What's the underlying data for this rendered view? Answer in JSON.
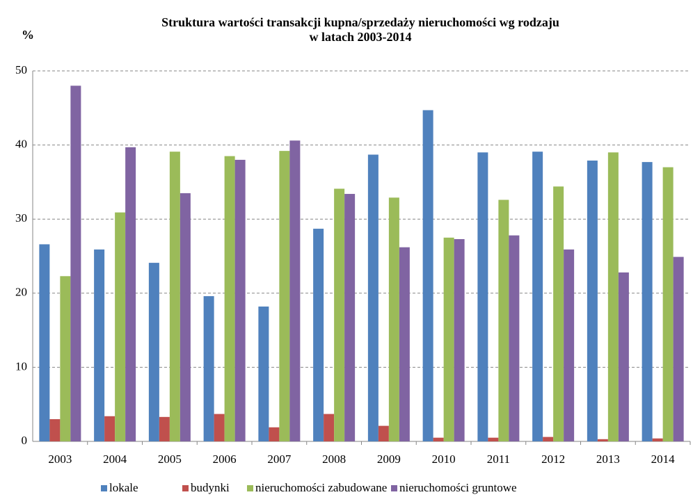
{
  "chart_data": {
    "type": "bar",
    "title": "Struktura wartości transakcji kupna/sprzedaży nieruchomości wg rodzaju",
    "subtitle": "w latach 2003-2014",
    "y_label": "%",
    "categories": [
      "2003",
      "2004",
      "2005",
      "2006",
      "2007",
      "2008",
      "2009",
      "2010",
      "2011",
      "2012",
      "2013",
      "2014"
    ],
    "series": [
      {
        "name": "lokale",
        "color": "#4f81bd",
        "values": [
          26.6,
          25.9,
          24.1,
          19.6,
          18.2,
          28.7,
          38.7,
          44.7,
          39.0,
          39.1,
          37.9,
          37.7
        ]
      },
      {
        "name": "budynki",
        "color": "#c0504d",
        "values": [
          3.0,
          3.4,
          3.3,
          3.7,
          1.9,
          3.7,
          2.1,
          0.5,
          0.5,
          0.6,
          0.3,
          0.4
        ]
      },
      {
        "name": "nieruchomości zabudowane",
        "color": "#9bbb59",
        "values": [
          22.3,
          30.9,
          39.1,
          38.5,
          39.2,
          34.1,
          32.9,
          27.5,
          32.6,
          34.4,
          39.0,
          37.0
        ]
      },
      {
        "name": "nieruchomości gruntowe",
        "color": "#8064a2",
        "values": [
          48.0,
          39.7,
          33.5,
          38.0,
          40.6,
          33.4,
          26.2,
          27.3,
          27.8,
          25.9,
          22.8,
          24.9
        ]
      }
    ],
    "ylim": [
      0,
      50
    ],
    "yticks": [
      0,
      10,
      20,
      30,
      40,
      50
    ],
    "grid": true,
    "legend": "bottom"
  }
}
